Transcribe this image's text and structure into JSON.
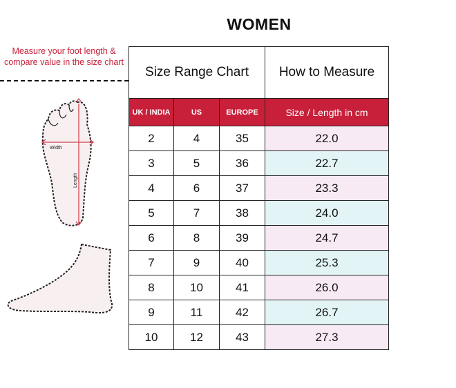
{
  "title": "WOMEN",
  "instruction": "Measure your foot length & compare value in the size chart",
  "diagram_labels": {
    "width": "Width",
    "length": "Length"
  },
  "table": {
    "group_headers": [
      "Size Range Chart",
      "How to Measure"
    ],
    "columns": [
      "UK / INDIA",
      "US",
      "EUROPE",
      "Size / Length in cm"
    ],
    "rows": [
      [
        "2",
        "4",
        "35",
        "22.0"
      ],
      [
        "3",
        "5",
        "36",
        "22.7"
      ],
      [
        "4",
        "6",
        "37",
        "23.3"
      ],
      [
        "5",
        "7",
        "38",
        "24.0"
      ],
      [
        "6",
        "8",
        "39",
        "24.7"
      ],
      [
        "7",
        "9",
        "40",
        "25.3"
      ],
      [
        "8",
        "10",
        "41",
        "26.0"
      ],
      [
        "9",
        "11",
        "42",
        "26.7"
      ],
      [
        "10",
        "12",
        "43",
        "27.3"
      ]
    ]
  },
  "colors": {
    "accent": "#c8203a",
    "row_pink": "#f8eaf4",
    "row_cyan": "#e3f4f6"
  }
}
